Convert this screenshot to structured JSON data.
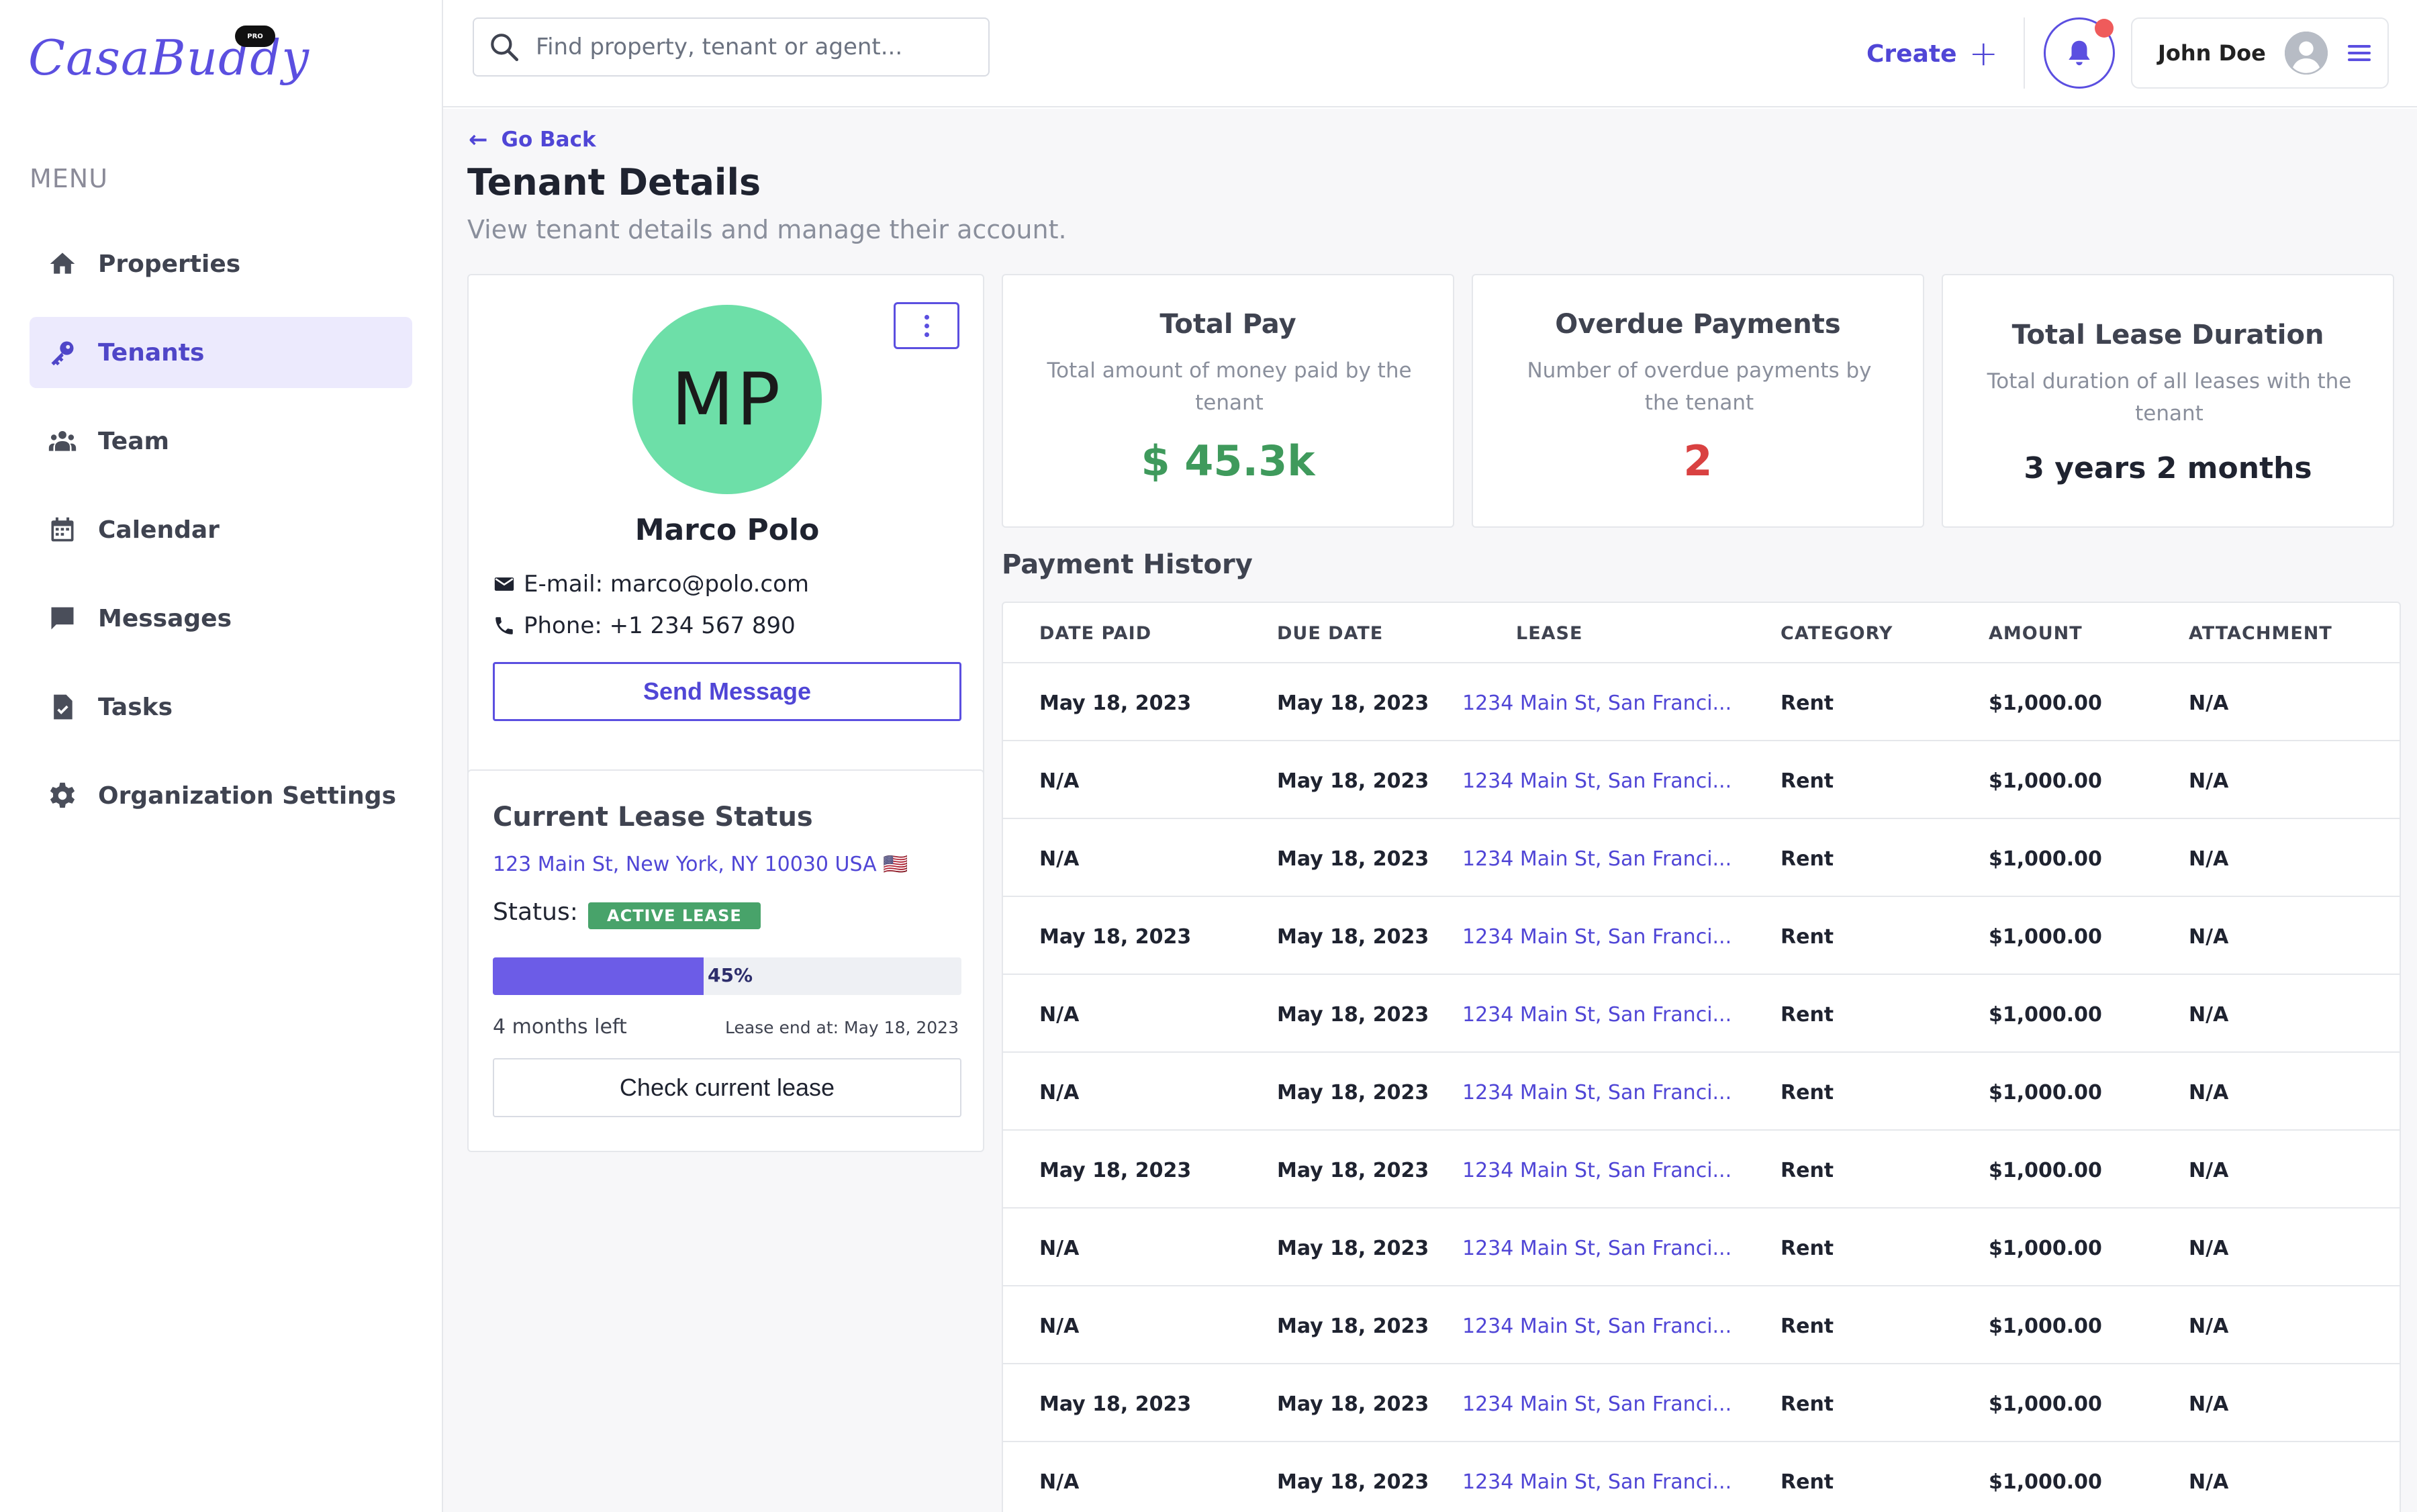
{
  "brand": {
    "name": "CasaBuddy",
    "badge": "PRO"
  },
  "sidebar": {
    "menu_label": "MENU",
    "items": [
      {
        "label": "Properties",
        "icon": "home-icon"
      },
      {
        "label": "Tenants",
        "icon": "key-icon",
        "active": true
      },
      {
        "label": "Team",
        "icon": "team-icon"
      },
      {
        "label": "Calendar",
        "icon": "calendar-icon"
      },
      {
        "label": "Messages",
        "icon": "chat-icon"
      },
      {
        "label": "Tasks",
        "icon": "task-icon"
      },
      {
        "label": "Organization Settings",
        "icon": "gear-icon"
      }
    ]
  },
  "header": {
    "search_placeholder": "Find property, tenant or agent...",
    "create_label": "Create",
    "user_name": "John Doe"
  },
  "page": {
    "back_label": "Go Back",
    "title": "Tenant Details",
    "subtitle": "View tenant details and manage their account."
  },
  "tenant": {
    "initials": "MP",
    "name": "Marco Polo",
    "email_line": "E-mail: marco@polo.com",
    "phone_line": "Phone: +1 234 567 890",
    "send_message_label": "Send Message",
    "avatar_color": "#6ddfa8"
  },
  "lease": {
    "title": "Current Lease Status",
    "address": "123 Main St, New York, NY 10030 USA 🇺🇸",
    "status_label": "Status:",
    "status_badge": "ACTIVE LEASE",
    "progress_percent": 45,
    "progress_text": "45%",
    "months_left": "4 months left",
    "lease_end": "Lease end at: May 18, 2023",
    "check_label": "Check current lease"
  },
  "stats": [
    {
      "title": "Total Pay",
      "description": "Total amount of money paid by the tenant",
      "value": "$ 45.3k",
      "color": "#3f9a5c"
    },
    {
      "title": "Overdue Payments",
      "description": "Number of overdue payments by the tenant",
      "value": "2",
      "color": "#d94141"
    },
    {
      "title": "Total Lease Duration",
      "description": "Total duration of all leases with the tenant",
      "value": "3 years 2 months",
      "color": "#1f2330"
    }
  ],
  "payments": {
    "title": "Payment History",
    "columns": [
      "DATE PAID",
      "DUE DATE",
      "LEASE",
      "CATEGORY",
      "AMOUNT",
      "ATTACHMENT"
    ],
    "rows": [
      [
        "May 18, 2023",
        "May 18, 2023",
        "1234 Main St, San Franci...",
        "Rent",
        "$1,000.00",
        "N/A"
      ],
      [
        "N/A",
        "May 18, 2023",
        "1234 Main St, San Franci...",
        "Rent",
        "$1,000.00",
        "N/A"
      ],
      [
        "N/A",
        "May 18, 2023",
        "1234 Main St, San Franci...",
        "Rent",
        "$1,000.00",
        "N/A"
      ],
      [
        "May 18, 2023",
        "May 18, 2023",
        "1234 Main St, San Franci...",
        "Rent",
        "$1,000.00",
        "N/A"
      ],
      [
        "N/A",
        "May 18, 2023",
        "1234 Main St, San Franci...",
        "Rent",
        "$1,000.00",
        "N/A"
      ],
      [
        "N/A",
        "May 18, 2023",
        "1234 Main St, San Franci...",
        "Rent",
        "$1,000.00",
        "N/A"
      ],
      [
        "May 18, 2023",
        "May 18, 2023",
        "1234 Main St, San Franci...",
        "Rent",
        "$1,000.00",
        "N/A"
      ],
      [
        "N/A",
        "May 18, 2023",
        "1234 Main St, San Franci...",
        "Rent",
        "$1,000.00",
        "N/A"
      ],
      [
        "N/A",
        "May 18, 2023",
        "1234 Main St, San Franci...",
        "Rent",
        "$1,000.00",
        "N/A"
      ],
      [
        "May 18, 2023",
        "May 18, 2023",
        "1234 Main St, San Franci...",
        "Rent",
        "$1,000.00",
        "N/A"
      ],
      [
        "N/A",
        "May 18, 2023",
        "1234 Main St, San Franci...",
        "Rent",
        "$1,000.00",
        "N/A"
      ]
    ]
  },
  "colors": {
    "accent": "#5b4fe0",
    "active_bg": "#eceafd",
    "badge_green": "#48a36a",
    "notification_dot": "#ef5b5b"
  }
}
